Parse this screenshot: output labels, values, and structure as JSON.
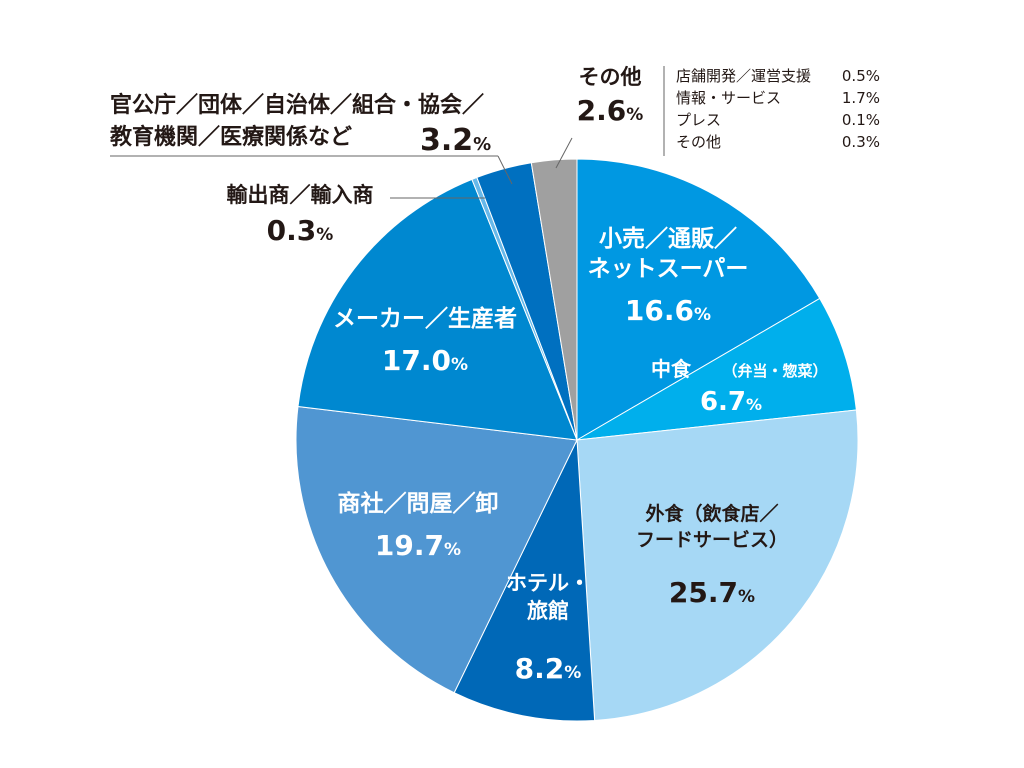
{
  "chart_data": {
    "type": "pie",
    "start_angle_deg": 0,
    "direction": "clockwise",
    "slices": [
      {
        "name_lines": [
          "小売／通販／",
          "ネットスーパー"
        ],
        "value": 16.6,
        "color": "#0098e2",
        "label_style": "white"
      },
      {
        "name_lines": [
          "中食",
          "（弁当・惣菜）"
        ],
        "value": 6.7,
        "color": "#00afec",
        "label_style": "white"
      },
      {
        "name_lines": [
          "外食（飲食店／",
          "フードサービス）"
        ],
        "value": 25.7,
        "color": "#a6d8f5",
        "label_style": "dark"
      },
      {
        "name_lines": [
          "ホテル・",
          "旅館"
        ],
        "value": 8.2,
        "color": "#0068b7",
        "label_style": "white"
      },
      {
        "name_lines": [
          "商社／問屋／卸"
        ],
        "value": 19.7,
        "color": "#5096d2",
        "label_style": "white"
      },
      {
        "name_lines": [
          "メーカー／生産者"
        ],
        "value": 17.0,
        "color": "#0088d0",
        "label_style": "white"
      },
      {
        "name_lines": [
          "輸出商／輸入商"
        ],
        "value": 0.3,
        "color": "#67b9ea",
        "label_style": "outside"
      },
      {
        "name_lines": [
          "官公庁／団体／自治体／組合・協会／",
          "教育機関／医療関係など"
        ],
        "value": 3.2,
        "color": "#0070c0",
        "label_style": "outside"
      },
      {
        "name_lines": [
          "その他"
        ],
        "value": 2.6,
        "color": "#a0a0a0",
        "label_style": "outside"
      }
    ],
    "other_breakdown": [
      {
        "name": "店舗開発／運営支援",
        "value": "0.5%"
      },
      {
        "name": "情報・サービス",
        "value": "1.7%"
      },
      {
        "name": "プレス",
        "value": "0.1%"
      },
      {
        "name": "その他",
        "value": "0.3%"
      }
    ]
  }
}
